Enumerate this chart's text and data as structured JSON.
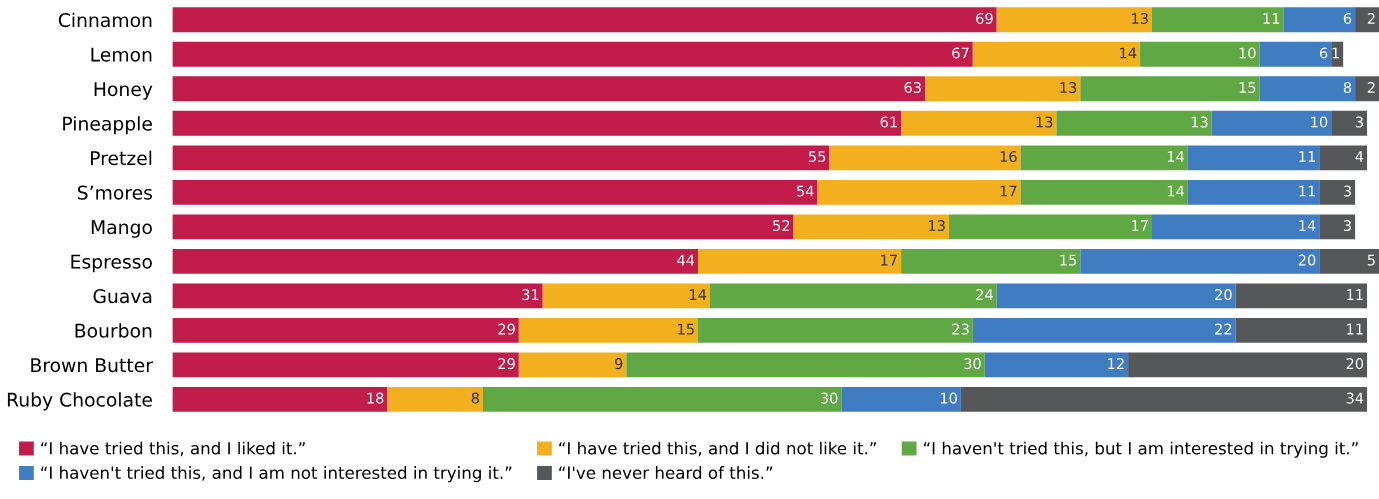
{
  "chart_data": {
    "type": "bar",
    "orientation": "horizontal",
    "stacked": true,
    "data_labels": true,
    "legend": "bottom",
    "grid": false,
    "categories": [
      "Cinnamon",
      "Lemon",
      "Honey",
      "Pineapple",
      "Pretzel",
      "S’mores",
      "Mango",
      "Espresso",
      "Guava",
      "Bourbon",
      "Brown Butter",
      "Ruby Chocolate"
    ],
    "series": [
      {
        "name": "“I have tried this, and I liked it.”",
        "color": "#c21d4a",
        "values": [
          69,
          67,
          63,
          61,
          55,
          54,
          52,
          44,
          31,
          29,
          29,
          18
        ]
      },
      {
        "name": "“I have tried this, and I did not like it.”",
        "color": "#f2b01e",
        "values": [
          13,
          14,
          13,
          13,
          16,
          17,
          13,
          17,
          14,
          15,
          9,
          8
        ]
      },
      {
        "name": "“I haven't tried this, but I am interested in trying it.”",
        "color": "#5fa843",
        "values": [
          11,
          10,
          15,
          13,
          14,
          14,
          17,
          15,
          24,
          23,
          30,
          30
        ]
      },
      {
        "name": "“I haven't tried this, and I am not interested in trying it.”",
        "color": "#3f7cc1",
        "values": [
          6,
          6,
          8,
          10,
          11,
          11,
          14,
          20,
          20,
          22,
          12,
          10
        ]
      },
      {
        "name": "“I've never heard of this.”",
        "color": "#555759",
        "values": [
          2,
          1,
          2,
          3,
          4,
          3,
          3,
          5,
          11,
          11,
          20,
          34
        ]
      }
    ]
  }
}
